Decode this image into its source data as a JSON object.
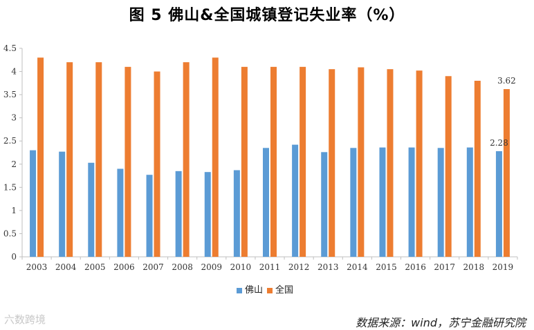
{
  "title": "图 5   佛山&全国城镇登记失业率（%）",
  "source_note": "数据来源：wind，苏宁金融研究院",
  "watermark": "六数跨境",
  "colors": {
    "foshan": "#5B9BD5",
    "national": "#ED7D31",
    "axis": "#bfbfbf"
  },
  "chart_data": {
    "type": "bar",
    "title": "图 5   佛山&全国城镇登记失业率（%）",
    "categories": [
      "2003",
      "2004",
      "2005",
      "2006",
      "2007",
      "2008",
      "2009",
      "2010",
      "2011",
      "2012",
      "2013",
      "2014",
      "2015",
      "2016",
      "2017",
      "2018",
      "2019"
    ],
    "series": [
      {
        "name": "佛山",
        "values": [
          2.3,
          2.27,
          2.03,
          1.9,
          1.77,
          1.85,
          1.83,
          1.87,
          2.35,
          2.42,
          2.26,
          2.35,
          2.36,
          2.36,
          2.35,
          2.36,
          2.28
        ]
      },
      {
        "name": "全国",
        "values": [
          4.3,
          4.2,
          4.2,
          4.1,
          4.0,
          4.2,
          4.3,
          4.1,
          4.1,
          4.1,
          4.05,
          4.09,
          4.05,
          4.02,
          3.9,
          3.8,
          3.62
        ]
      }
    ],
    "data_labels": [
      {
        "series": "佛山",
        "category": "2019",
        "text": "2.28"
      },
      {
        "series": "全国",
        "category": "2019",
        "text": "3.62"
      }
    ],
    "y_ticks": [
      "0",
      "0.5",
      "1",
      "1.5",
      "2",
      "2.5",
      "3",
      "3.5",
      "4",
      "4.5"
    ],
    "ylim": [
      0,
      4.5
    ],
    "grid": false,
    "legend": "bottom"
  }
}
